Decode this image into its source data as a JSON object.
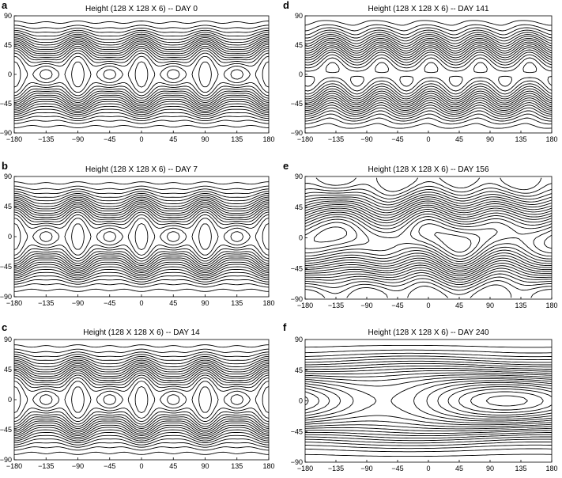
{
  "chart_data": [
    {
      "type": "contour",
      "panel_letter": "a",
      "title": "Height (128 X 128 X 6) -- DAY 0",
      "xlim": [
        -180,
        180
      ],
      "ylim": [
        -90,
        90
      ],
      "xticks": [
        -180,
        -135,
        -90,
        -45,
        0,
        45,
        90,
        135,
        180
      ],
      "yticks": [
        90,
        45,
        0,
        -45,
        -90
      ],
      "grid": false,
      "wavenumber": 4
    },
    {
      "type": "contour",
      "panel_letter": "b",
      "title": "Height (128 X 128 X 6) -- DAY 7",
      "xlim": [
        -180,
        180
      ],
      "ylim": [
        -90,
        90
      ],
      "xticks": [
        -180,
        -135,
        -90,
        -45,
        0,
        45,
        90,
        135,
        180
      ],
      "yticks": [
        90,
        45,
        0,
        -45,
        -90
      ],
      "grid": false,
      "wavenumber": 4
    },
    {
      "type": "contour",
      "panel_letter": "c",
      "title": "Height (128 X 128 X 6) -- DAY 14",
      "xlim": [
        -180,
        180
      ],
      "ylim": [
        -90,
        90
      ],
      "xticks": [
        -180,
        -135,
        -90,
        -45,
        0,
        45,
        90,
        135,
        180
      ],
      "yticks": [
        90,
        45,
        0,
        -45,
        -90
      ],
      "grid": false,
      "wavenumber": 4
    },
    {
      "type": "contour",
      "panel_letter": "d",
      "title": "Height (128 X 128 X 6) -- DAY 141",
      "xlim": [
        -180,
        180
      ],
      "ylim": [
        -90,
        90
      ],
      "xticks": [
        -180,
        -135,
        -90,
        -45,
        0,
        45,
        90,
        135,
        180
      ],
      "yticks": [
        90,
        45,
        0,
        -45,
        -90
      ],
      "grid": false,
      "wavenumber": 5
    },
    {
      "type": "contour",
      "panel_letter": "e",
      "title": "Height (128 X 128 X 6) -- DAY 156",
      "xlim": [
        -180,
        180
      ],
      "ylim": [
        -90,
        90
      ],
      "xticks": [
        -180,
        -135,
        -90,
        -45,
        0,
        45,
        90,
        135,
        180
      ],
      "yticks": [
        90,
        45,
        0,
        -45,
        -90
      ],
      "grid": false,
      "wavenumber": 3
    },
    {
      "type": "contour",
      "panel_letter": "f",
      "title": "Height (128 X 128 X 6) -- DAY 240",
      "xlim": [
        -180,
        180
      ],
      "ylim": [
        -90,
        90
      ],
      "xticks": [
        -180,
        -135,
        -90,
        -45,
        0,
        45,
        90,
        135,
        180
      ],
      "yticks": [
        90,
        45,
        0,
        -45,
        -90
      ],
      "grid": false,
      "wavenumber": 1
    }
  ]
}
